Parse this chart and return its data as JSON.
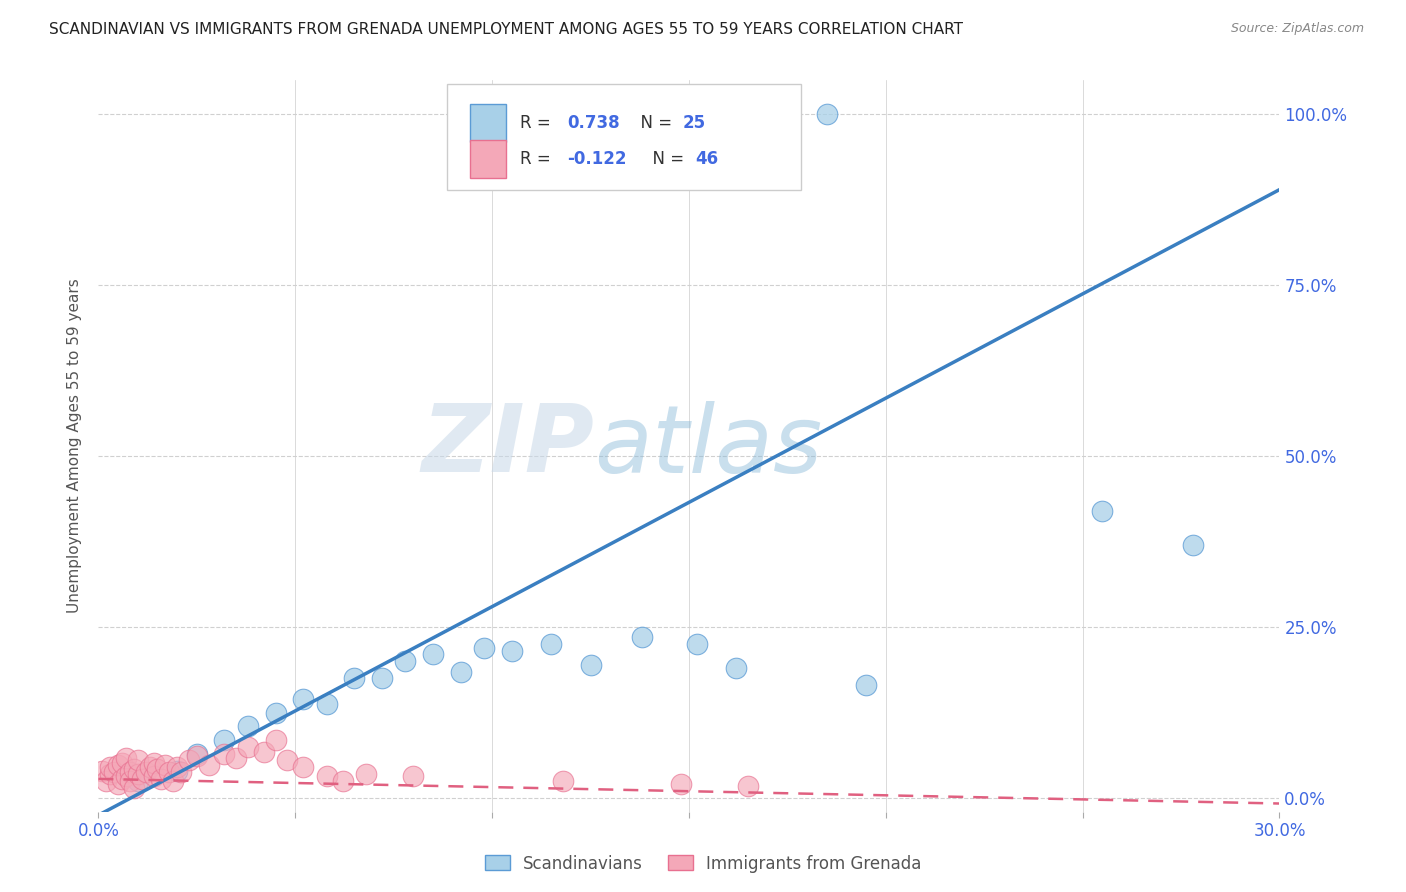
{
  "title": "SCANDINAVIAN VS IMMIGRANTS FROM GRENADA UNEMPLOYMENT AMONG AGES 55 TO 59 YEARS CORRELATION CHART",
  "source": "Source: ZipAtlas.com",
  "ylabel": "Unemployment Among Ages 55 to 59 years",
  "xlim": [
    0.0,
    0.3
  ],
  "ylim": [
    -0.02,
    1.05
  ],
  "xticks": [
    0.0,
    0.05,
    0.1,
    0.15,
    0.2,
    0.25,
    0.3
  ],
  "yticks": [
    0.0,
    0.25,
    0.5,
    0.75,
    1.0
  ],
  "ytick_labels": [
    "0.0%",
    "25.0%",
    "50.0%",
    "75.0%",
    "100.0%"
  ],
  "xtick_labels": [
    "0.0%",
    "",
    "",
    "",
    "",
    "",
    "30.0%"
  ],
  "blue_color": "#a8d0e8",
  "pink_color": "#f4a8b8",
  "blue_edge_color": "#5b9bd5",
  "pink_edge_color": "#e87090",
  "blue_line_color": "#3a7fc1",
  "pink_line_color": "#e06080",
  "legend1_R": "0.738",
  "legend1_N": "25",
  "legend2_R": "-0.122",
  "legend2_N": "46",
  "legend_label1": "Scandinavians",
  "legend_label2": "Immigrants from Grenada",
  "watermark_zip": "ZIP",
  "watermark_atlas": "atlas",
  "blue_line_slope": 3.05,
  "blue_line_intercept": -0.025,
  "pink_line_slope": -0.12,
  "pink_line_intercept": 0.028,
  "blue_scatter_x": [
    0.01,
    0.02,
    0.025,
    0.032,
    0.038,
    0.045,
    0.052,
    0.058,
    0.065,
    0.072,
    0.078,
    0.085,
    0.092,
    0.098,
    0.105,
    0.115,
    0.125,
    0.138,
    0.152,
    0.162,
    0.172,
    0.185,
    0.195,
    0.255,
    0.278
  ],
  "blue_scatter_y": [
    0.025,
    0.04,
    0.065,
    0.085,
    0.105,
    0.125,
    0.145,
    0.138,
    0.175,
    0.175,
    0.2,
    0.21,
    0.185,
    0.22,
    0.215,
    0.225,
    0.195,
    0.235,
    0.225,
    0.19,
    1.0,
    1.0,
    0.165,
    0.42,
    0.37
  ],
  "pink_scatter_x": [
    0.001,
    0.002,
    0.003,
    0.003,
    0.004,
    0.005,
    0.005,
    0.006,
    0.006,
    0.007,
    0.007,
    0.008,
    0.008,
    0.009,
    0.009,
    0.01,
    0.01,
    0.011,
    0.012,
    0.013,
    0.014,
    0.014,
    0.015,
    0.016,
    0.017,
    0.018,
    0.019,
    0.02,
    0.021,
    0.023,
    0.025,
    0.028,
    0.032,
    0.035,
    0.038,
    0.042,
    0.045,
    0.048,
    0.052,
    0.058,
    0.062,
    0.068,
    0.08,
    0.118,
    0.148,
    0.165
  ],
  "pink_scatter_y": [
    0.04,
    0.025,
    0.035,
    0.045,
    0.038,
    0.02,
    0.048,
    0.028,
    0.052,
    0.032,
    0.058,
    0.038,
    0.025,
    0.042,
    0.015,
    0.035,
    0.055,
    0.028,
    0.038,
    0.045,
    0.032,
    0.052,
    0.042,
    0.028,
    0.048,
    0.038,
    0.025,
    0.045,
    0.038,
    0.055,
    0.062,
    0.048,
    0.065,
    0.058,
    0.075,
    0.068,
    0.085,
    0.055,
    0.045,
    0.032,
    0.025,
    0.035,
    0.032,
    0.025,
    0.02,
    0.018
  ],
  "background_color": "#ffffff",
  "grid_color": "#d0d0d0",
  "title_color": "#222222",
  "axis_label_color": "#555555",
  "tick_color_right": "#4169e1",
  "tick_color_bottom": "#4169e1"
}
